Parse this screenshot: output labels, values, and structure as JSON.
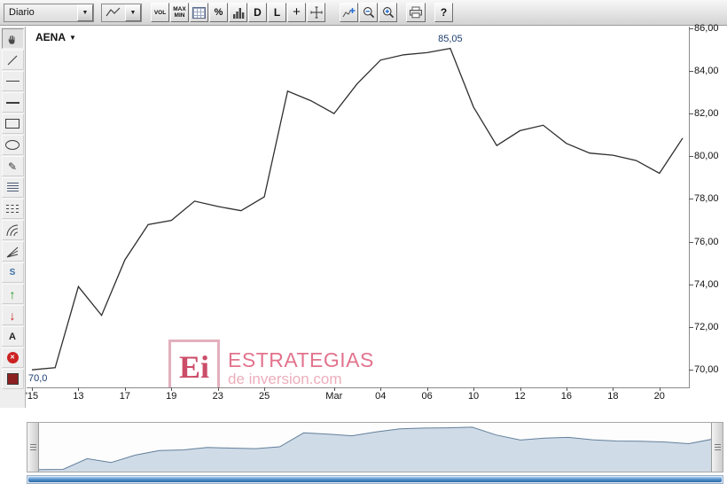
{
  "top_toolbar": {
    "period_dropdown": {
      "value": "Diario"
    },
    "vol_label": "VOL",
    "max_label": "MAX",
    "min_label": "MIN",
    "percent_label": "%",
    "d_label": "D",
    "l_label": "L",
    "help_label": "?"
  },
  "icons": {
    "chevron_down": "▼",
    "plus": "+",
    "pencil": "✎",
    "arrow_up": "↑",
    "arrow_down": "↓",
    "close": "✕"
  },
  "side_toolbar": {
    "wave_label": "S",
    "text_label": "A"
  },
  "symbol": {
    "name": "AENA"
  },
  "watermark": {
    "logo": "Ei",
    "line1": "ESTRATEGIAS",
    "line2": "de inversion.com"
  },
  "colors": {
    "price_line": "#2f2f2f",
    "annotation": "#1b3c6e",
    "navigator_line": "#64809c",
    "navigator_fill": "#cfdbe7",
    "scrollbar_blue": "#4f8cc9",
    "watermark_pink": "#e2738d",
    "arrow_up_green": "#169a16",
    "arrow_down_red": "#cc2020"
  },
  "chart_data": {
    "type": "line",
    "title": "AENA",
    "series": [
      {
        "name": "AENA",
        "values": [
          70.0,
          70.1,
          73.9,
          72.55,
          75.15,
          76.8,
          77.0,
          77.9,
          77.65,
          77.45,
          78.1,
          83.05,
          82.6,
          82.0,
          83.4,
          84.5,
          84.75,
          84.85,
          85.05,
          82.3,
          80.5,
          81.2,
          81.45,
          80.6,
          80.15,
          80.05,
          79.8,
          79.2,
          80.85
        ]
      }
    ],
    "x_ticks": [
      {
        "label": "'15",
        "index": 0
      },
      {
        "label": "13",
        "index": 2
      },
      {
        "label": "17",
        "index": 4
      },
      {
        "label": "19",
        "index": 6
      },
      {
        "label": "23",
        "index": 8
      },
      {
        "label": "25",
        "index": 10
      },
      {
        "label": "Mar",
        "index": 13
      },
      {
        "label": "04",
        "index": 15
      },
      {
        "label": "06",
        "index": 17
      },
      {
        "label": "10",
        "index": 19
      },
      {
        "label": "12",
        "index": 21
      },
      {
        "label": "16",
        "index": 23
      },
      {
        "label": "18",
        "index": 25
      },
      {
        "label": "20",
        "index": 27
      }
    ],
    "y_ticks": [
      {
        "label": "70,00",
        "value": 70
      },
      {
        "label": "72,00",
        "value": 72
      },
      {
        "label": "74,00",
        "value": 74
      },
      {
        "label": "76,00",
        "value": 76
      },
      {
        "label": "78,00",
        "value": 78
      },
      {
        "label": "80,00",
        "value": 80
      },
      {
        "label": "82,00",
        "value": 82
      },
      {
        "label": "84,00",
        "value": 84
      },
      {
        "label": "86,00",
        "value": 86
      }
    ],
    "ylim": [
      69.18,
      86.07
    ],
    "grid": false,
    "legend": false,
    "annotations": [
      {
        "text": "85,05",
        "index": 18,
        "value": 85.05,
        "placement": "above"
      },
      {
        "text": "70,0",
        "index": 0,
        "value": 70.0,
        "placement": "below"
      }
    ]
  }
}
